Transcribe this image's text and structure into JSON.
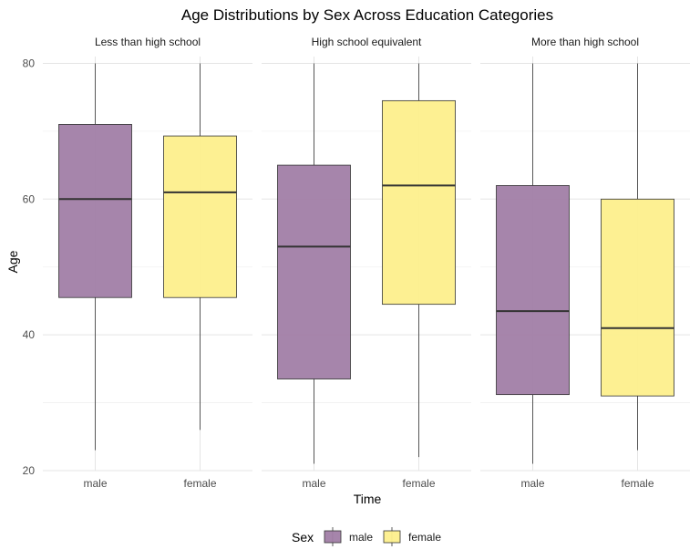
{
  "colors": {
    "male": "#a17ea6",
    "female": "#fdef8c",
    "stroke": "#333333",
    "median": "#333333"
  },
  "chart_data": {
    "type": "boxplot",
    "title": "Age Distributions by Sex Across Education Categories",
    "xlabel": "Time",
    "ylabel": "Age",
    "ylim": [
      20,
      81
    ],
    "y_ticks": [
      20,
      40,
      60,
      80
    ],
    "grid": true,
    "legend": {
      "title": "Sex",
      "position": "bottom",
      "entries": [
        "male",
        "female"
      ]
    },
    "categories": [
      "male",
      "female"
    ],
    "panels": [
      {
        "label": "Less than high school",
        "boxes": [
          {
            "group": "male",
            "min": 23,
            "q1": 45.5,
            "median": 60,
            "q3": 71,
            "max": 80
          },
          {
            "group": "female",
            "min": 26,
            "q1": 45.5,
            "median": 61,
            "q3": 69.3,
            "max": 80
          }
        ]
      },
      {
        "label": "High school equivalent",
        "boxes": [
          {
            "group": "male",
            "min": 21,
            "q1": 33.5,
            "median": 53,
            "q3": 65,
            "max": 80
          },
          {
            "group": "female",
            "min": 22,
            "q1": 44.5,
            "median": 62,
            "q3": 74.5,
            "max": 80
          }
        ]
      },
      {
        "label": "More than high school",
        "boxes": [
          {
            "group": "male",
            "min": 21,
            "q1": 31.2,
            "median": 43.5,
            "q3": 62,
            "max": 80
          },
          {
            "group": "female",
            "min": 23,
            "q1": 31,
            "median": 41,
            "q3": 60,
            "max": 80
          }
        ]
      }
    ]
  }
}
